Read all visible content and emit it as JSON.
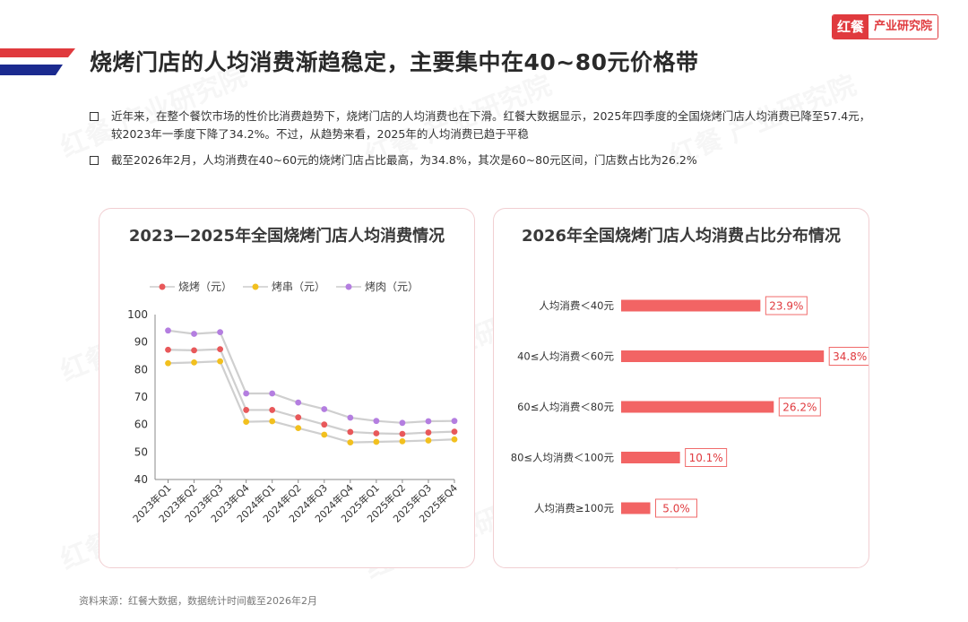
{
  "header": {
    "title": "烧烤门店的人均消费渐趋稳定，主要集中在40~80元价格带",
    "logo_mark": "红餐",
    "logo_text": "产业研究院"
  },
  "bullets": [
    "近年来，在整个餐饮市场的性价比消费趋势下，烧烤门店的人均消费也在下滑。红餐大数据显示，2025年四季度的全国烧烤门店人均消费已降至57.4元，较2023年一季度下降了34.2%。不过，从趋势来看，2025年的人均消费已趋于平稳",
    "截至2026年2月，人均消费在40~60元的烧烤门店占比最高，为34.8%，其次是60~80元区间，门店数占比为26.2%"
  ],
  "colors": {
    "accent": "#e03a3e",
    "bar": "#f26464",
    "series": [
      "#e8585a",
      "#f2c01e",
      "#b47ee0"
    ]
  },
  "chart_data": [
    {
      "type": "line",
      "title": "2023—2025年全国烧烤门店人均消费情况",
      "categories": [
        "2023年Q1",
        "2023年Q2",
        "2023年Q3",
        "2023年Q4",
        "2024年Q1",
        "2024年Q2",
        "2024年Q3",
        "2024年Q4",
        "2025年Q1",
        "2025年Q2",
        "2025年Q3",
        "2025年Q4"
      ],
      "series": [
        {
          "name": "烧烤（元）",
          "values": [
            87.2,
            87.0,
            87.4,
            65.3,
            65.3,
            62.6,
            60.0,
            57.3,
            56.8,
            56.6,
            57.1,
            57.4
          ]
        },
        {
          "name": "烤串（元）",
          "values": [
            82.3,
            82.6,
            83.0,
            61.0,
            61.2,
            58.7,
            56.3,
            53.5,
            53.7,
            53.9,
            54.2,
            54.6
          ]
        },
        {
          "name": "烤肉（元）",
          "values": [
            94.2,
            93.0,
            93.6,
            71.3,
            71.3,
            68.0,
            65.6,
            62.5,
            61.3,
            60.6,
            61.2,
            61.3
          ]
        }
      ],
      "y_ticks": [
        "100",
        "90",
        "80",
        "70",
        "60",
        "50",
        "40"
      ],
      "ylim": [
        40,
        100
      ],
      "legend": "top",
      "grid": false
    },
    {
      "type": "bar",
      "orientation": "horizontal",
      "title": "2026年全国烧烤门店人均消费占比分布情况",
      "categories": [
        "人均消费＜40元",
        "40≤人均消费＜60元",
        "60≤人均消费＜80元",
        "80≤人均消费＜100元",
        "人均消费≥100元"
      ],
      "values": [
        23.9,
        34.8,
        26.2,
        10.1,
        5.0
      ],
      "labels": [
        "23.9%",
        "34.8%",
        "26.2%",
        "10.1%",
        "5.0%"
      ]
    }
  ],
  "source": "资料来源：红餐大数据，数据统计时间截至2026年2月",
  "watermark": "红餐 产业研究院"
}
